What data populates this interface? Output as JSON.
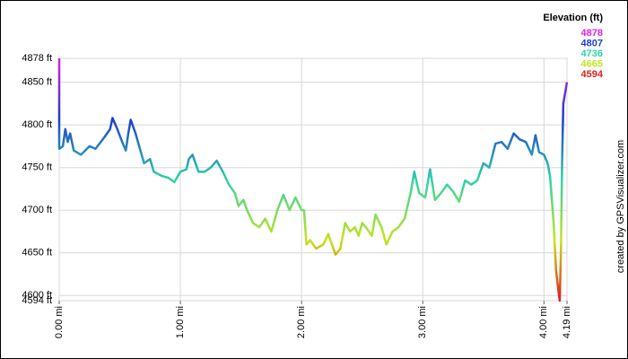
{
  "chart_data": {
    "type": "line",
    "title": "Elevation (ft)",
    "credit": "created by GPSVisualizer.com",
    "color_scale": {
      "values": [
        4878,
        4807,
        4736,
        4665,
        4594
      ],
      "colors": [
        "#e01ee0",
        "#1e3cd2",
        "#2ed2a8",
        "#c4e41e",
        "#e01e1e"
      ]
    },
    "x": [
      0.0,
      0.0,
      0.03,
      0.05,
      0.07,
      0.09,
      0.12,
      0.18,
      0.25,
      0.3,
      0.37,
      0.42,
      0.44,
      0.48,
      0.52,
      0.55,
      0.57,
      0.59,
      0.63,
      0.67,
      0.7,
      0.75,
      0.78,
      0.85,
      0.9,
      0.95,
      1.0,
      1.05,
      1.07,
      1.1,
      1.15,
      1.2,
      1.25,
      1.3,
      1.35,
      1.4,
      1.45,
      1.48,
      1.52,
      1.55,
      1.6,
      1.65,
      1.7,
      1.75,
      1.8,
      1.85,
      1.9,
      1.95,
      2.0,
      2.02,
      2.04,
      2.07,
      2.12,
      2.18,
      2.22,
      2.28,
      2.32,
      2.36,
      2.4,
      2.44,
      2.47,
      2.5,
      2.53,
      2.58,
      2.61,
      2.66,
      2.7,
      2.75,
      2.8,
      2.85,
      2.9,
      2.93,
      2.97,
      3.02,
      3.06,
      3.1,
      3.15,
      3.2,
      3.25,
      3.3,
      3.35,
      3.4,
      3.45,
      3.5,
      3.55,
      3.6,
      3.65,
      3.7,
      3.75,
      3.8,
      3.85,
      3.9,
      3.93,
      3.96,
      4.0,
      4.03,
      4.05,
      4.08,
      4.1,
      4.12,
      4.13,
      4.14,
      4.15,
      4.16,
      4.19
    ],
    "series": [
      {
        "name": "Elevation",
        "values": [
          4878,
          4772,
          4775,
          4795,
          4780,
          4790,
          4770,
          4765,
          4775,
          4772,
          4785,
          4795,
          4808,
          4795,
          4780,
          4770,
          4790,
          4806,
          4790,
          4770,
          4755,
          4760,
          4745,
          4740,
          4738,
          4733,
          4745,
          4748,
          4760,
          4765,
          4745,
          4745,
          4750,
          4758,
          4745,
          4730,
          4720,
          4705,
          4712,
          4700,
          4685,
          4680,
          4690,
          4675,
          4700,
          4718,
          4700,
          4715,
          4700,
          4700,
          4660,
          4665,
          4655,
          4660,
          4672,
          4648,
          4655,
          4685,
          4675,
          4680,
          4670,
          4685,
          4680,
          4670,
          4695,
          4680,
          4660,
          4675,
          4680,
          4690,
          4720,
          4745,
          4720,
          4715,
          4748,
          4712,
          4720,
          4730,
          4722,
          4710,
          4735,
          4730,
          4735,
          4755,
          4750,
          4778,
          4780,
          4772,
          4790,
          4783,
          4780,
          4765,
          4788,
          4768,
          4765,
          4755,
          4740,
          4685,
          4630,
          4605,
          4594,
          4650,
          4760,
          4825,
          4850
        ]
      }
    ],
    "xlim": [
      0,
      4.19
    ],
    "ylim": [
      4594,
      4878
    ],
    "xticks": [
      {
        "value": 0,
        "label": "0.00 mi"
      },
      {
        "value": 1,
        "label": "1.00 mi"
      },
      {
        "value": 2,
        "label": "2.00 mi"
      },
      {
        "value": 3,
        "label": "3.00 mi"
      },
      {
        "value": 4,
        "label": "4.00 mi"
      },
      {
        "value": 4.19,
        "label": "4.19 mi"
      }
    ],
    "yticks": [
      {
        "value": 4594,
        "label": "4594 ft"
      },
      {
        "value": 4600,
        "label": "4600 ft"
      },
      {
        "value": 4650,
        "label": "4650 ft"
      },
      {
        "value": 4700,
        "label": "4700 ft"
      },
      {
        "value": 4750,
        "label": "4750 ft"
      },
      {
        "value": 4800,
        "label": "4800 ft"
      },
      {
        "value": 4850,
        "label": "4850 ft"
      },
      {
        "value": 4878,
        "label": "4878 ft"
      }
    ],
    "grid": true
  }
}
